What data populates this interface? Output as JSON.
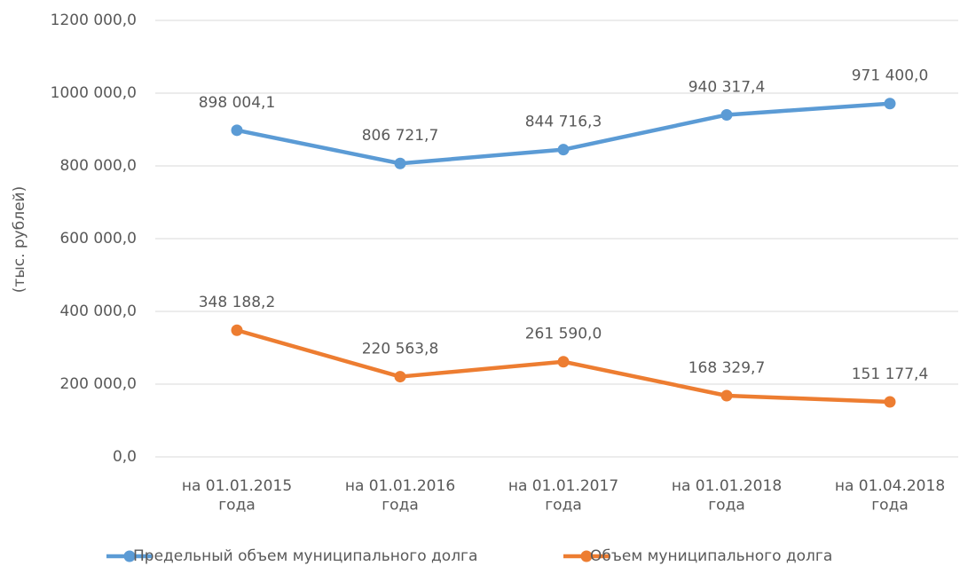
{
  "chart_data": {
    "type": "line",
    "y_label": "(тыс. рублей)",
    "categories": [
      "на 01.01.2015\nгода",
      "на 01.01.2016\nгода",
      "на 01.01.2017\nгода",
      "на 01.01.2018\nгода",
      "на 01.04.2018\nгода"
    ],
    "series": [
      {
        "name": "Предельный объем муниципального долга",
        "color": "#5b9bd5",
        "values": [
          898004.1,
          806721.7,
          844716.3,
          940317.4,
          971400.0
        ],
        "value_labels": [
          "898 004,1",
          "806 721,7",
          "844 716,3",
          "940 317,4",
          "971 400,0"
        ]
      },
      {
        "name": "Объем муниципального долга",
        "color": "#ed7d31",
        "values": [
          348188.2,
          220563.8,
          261590.0,
          168329.7,
          151177.4
        ],
        "value_labels": [
          "348 188,2",
          "220 563,8",
          "261 590,0",
          "168 329,7",
          "151 177,4"
        ]
      }
    ],
    "ylim": [
      0,
      1200000
    ],
    "yticks": [
      {
        "value": 0,
        "label": "0,0"
      },
      {
        "value": 200000,
        "label": "200 000,0"
      },
      {
        "value": 400000,
        "label": "400 000,0"
      },
      {
        "value": 600000,
        "label": "600 000,0"
      },
      {
        "value": 800000,
        "label": "800 000,0"
      },
      {
        "value": 1000000,
        "label": "1000 000,0"
      },
      {
        "value": 1200000,
        "label": "1200 000,0"
      }
    ],
    "grid": true,
    "legend": "bottom"
  }
}
